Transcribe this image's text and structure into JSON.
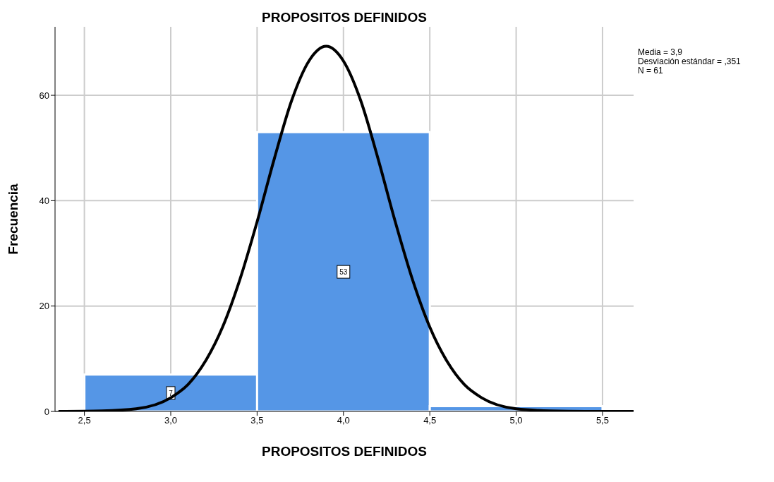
{
  "chart_data": {
    "type": "histogram",
    "title": "PROPOSITOS DEFINIDOS",
    "xlabel": "PROPOSITOS DEFINIDOS",
    "ylabel": "Frecuencia",
    "bins": [
      2.5,
      3.5,
      4.5,
      5.5
    ],
    "values": [
      7,
      53,
      1
    ],
    "color": "#5596e6",
    "value_labels": [
      "7",
      "53",
      null
    ],
    "series": [
      {
        "type": "line",
        "color": "#000000",
        "x": [
          2.35,
          2.6,
          2.8,
          3.0,
          3.1,
          3.2,
          3.3,
          3.4,
          3.5,
          3.6,
          3.7,
          3.8,
          3.9,
          4.0,
          4.1,
          4.2,
          4.3,
          4.4,
          4.5,
          4.6,
          4.7,
          4.8,
          5.0,
          5.2,
          5.4,
          5.68
        ],
        "values": [
          0,
          0.1,
          0.5,
          2.6,
          5.1,
          9.5,
          16,
          25,
          36,
          48,
          59,
          66.5,
          69.3,
          66.5,
          59,
          48,
          36,
          25,
          16,
          9.5,
          5.1,
          2.6,
          0.5,
          0.1,
          0,
          0
        ]
      }
    ],
    "xlim": [
      2.33,
      5.68
    ],
    "ylim": [
      0,
      73
    ],
    "xticks": [
      {
        "value": 2.5,
        "label": "2,5"
      },
      {
        "value": 3,
        "label": "3,0"
      },
      {
        "value": 3.5,
        "label": "3,5"
      },
      {
        "value": 4,
        "label": "4,0"
      },
      {
        "value": 4.5,
        "label": "4,5"
      },
      {
        "value": 5,
        "label": "5,0"
      },
      {
        "value": 5.5,
        "label": "5,5"
      }
    ],
    "yticks": [
      0,
      20,
      40,
      60
    ],
    "grid": true,
    "marker": "none",
    "line_style": "solid",
    "annotations": [
      "Media = 3,9",
      "Desviación estándar = ,351",
      "N = 61"
    ]
  }
}
